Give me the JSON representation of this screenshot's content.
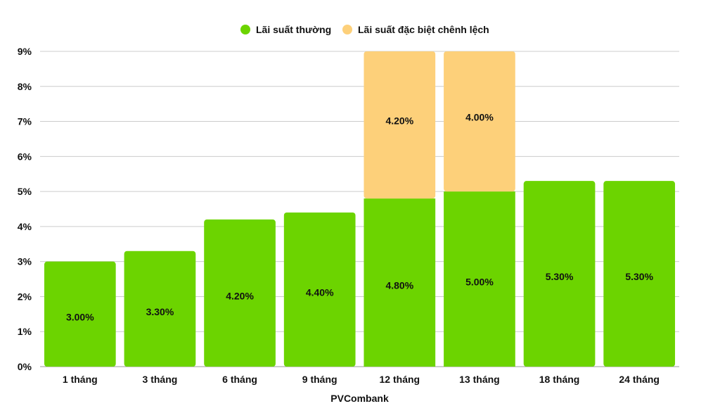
{
  "chart_data": {
    "type": "bar",
    "stacked": true,
    "categories": [
      "1 tháng",
      "3 tháng",
      "6 tháng",
      "9 tháng",
      "12 tháng",
      "13 tháng",
      "18 tháng",
      "24 tháng"
    ],
    "series": [
      {
        "name": "Lãi suất thường",
        "color": "#6cd400",
        "values": [
          3.0,
          3.3,
          4.2,
          4.4,
          4.8,
          5.0,
          5.3,
          5.3
        ],
        "labels": [
          "3.00%",
          "3.30%",
          "4.20%",
          "4.40%",
          "4.80%",
          "5.00%",
          "5.30%",
          "5.30%"
        ]
      },
      {
        "name": "Lãi suất đặc biệt chênh lệch",
        "color": "#fdd07a",
        "values": [
          0,
          0,
          0,
          0,
          4.2,
          4.0,
          0,
          0
        ],
        "labels": [
          "",
          "",
          "",
          "",
          "4.20%",
          "4.00%",
          "",
          ""
        ]
      }
    ],
    "xlabel": "PVCombank",
    "ylabel": "",
    "ylim": [
      0,
      9
    ],
    "yticks": [
      "0%",
      "1%",
      "2%",
      "3%",
      "4%",
      "5%",
      "6%",
      "7%",
      "8%",
      "9%"
    ],
    "grid": true,
    "legend_position": "top-center"
  }
}
